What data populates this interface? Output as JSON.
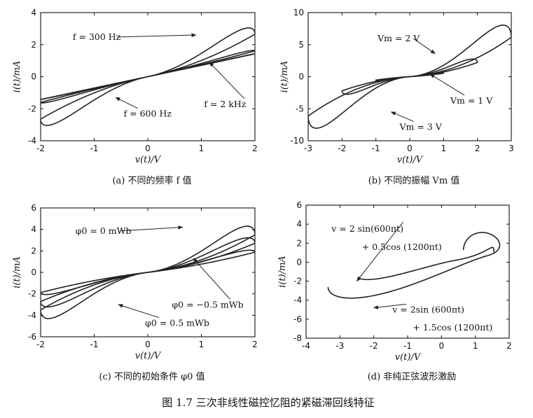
{
  "figure_caption": "图 1.7    三次非线性磁控忆阻的紧磁滞回线特征",
  "chart_data": [
    {
      "type": "line",
      "id": "a",
      "caption": "(a) 不同的频率 f 值",
      "xlabel": "v(t)/V",
      "ylabel": "i(t)/mA",
      "xlim": [
        -2,
        2
      ],
      "ylim": [
        -4,
        4
      ],
      "xticks": [
        -2,
        -1,
        0,
        1,
        2
      ],
      "yticks": [
        -4,
        -2,
        0,
        2,
        4
      ],
      "series": [
        {
          "amp": 2,
          "peak": 3.8,
          "min": 0.7,
          "w2": 0,
          "c2": 0
        },
        {
          "amp": 2,
          "peak": 1.8,
          "min": 0.7,
          "w2": 0,
          "c2": 0
        },
        {
          "amp": 2,
          "peak": 1.45,
          "min": 0.7,
          "w2": 0,
          "c2": 0
        }
      ],
      "annotations": [
        {
          "text": "f = 300 Hz",
          "tx": -1.4,
          "ty": 2.3,
          "ax": 0.9,
          "ay": 2.6
        },
        {
          "text": "f = 600 Hz",
          "tx": -0.45,
          "ty": -2.5,
          "ax": -0.6,
          "ay": -1.3
        },
        {
          "text": "f = 2 kHz",
          "tx": 1.05,
          "ty": -1.9,
          "ax": 1.15,
          "ay": 0.9
        }
      ]
    },
    {
      "type": "line",
      "id": "b",
      "caption": "(b) 不同的振幅 Vm 值",
      "xlabel": "v(t)/V",
      "ylabel": "i(t)/mA",
      "xlim": [
        -3,
        3
      ],
      "ylim": [
        -10,
        10
      ],
      "xticks": [
        -3,
        -2,
        -1,
        0,
        1,
        2,
        3
      ],
      "yticks": [
        -10,
        -5,
        0,
        5,
        10
      ],
      "series": [
        {
          "amp": 3,
          "peak": 10.8,
          "min": 0.35,
          "w2": 0,
          "c2": 0
        },
        {
          "amp": 2,
          "peak": 3.6,
          "min": 0.35,
          "w2": 0,
          "c2": 0
        },
        {
          "amp": 1,
          "peak": 0.75,
          "min": 0.3,
          "w2": 0,
          "c2": 0
        }
      ],
      "annotations": [
        {
          "text": "Vm = 2 V",
          "tx": -0.95,
          "ty": 5.5,
          "ax": 0.75,
          "ay": 3.6
        },
        {
          "text": "Vm = 1 V",
          "tx": 1.2,
          "ty": -4.2,
          "ax": 0.6,
          "ay": 0.4
        },
        {
          "text": "Vm = 3 V",
          "tx": -0.3,
          "ty": -8.3,
          "ax": -0.55,
          "ay": -5.5
        }
      ]
    },
    {
      "type": "line",
      "id": "c",
      "caption": "(c) 不同的初始条件 φ0 值",
      "xlabel": "v(t)/V",
      "ylabel": "i(t)/mA",
      "xlim": [
        -2,
        2
      ],
      "ylim": [
        -6,
        6
      ],
      "xticks": [
        -2,
        -1,
        0,
        1,
        2
      ],
      "yticks": [
        -6,
        -4,
        -2,
        0,
        2,
        4,
        6
      ],
      "series": [
        {
          "amp": 2,
          "peak": 5.6,
          "min": 0.6,
          "w2": 0,
          "c2": 0
        },
        {
          "amp": 2,
          "peak": 4.1,
          "min": 0.6,
          "w2": 0,
          "c2": 0
        },
        {
          "amp": 2,
          "peak": 2.5,
          "min": 0.6,
          "w2": 0,
          "c2": 0
        }
      ],
      "annotations": [
        {
          "text": "φ0 = 0 mWb",
          "tx": -1.35,
          "ty": 3.6,
          "ax": 0.65,
          "ay": 4.2
        },
        {
          "text": "φ0 = −0.5 mWb",
          "tx": 0.45,
          "ty": -3.3,
          "ax": 0.85,
          "ay": 1.3
        },
        {
          "text": "φ0 = 0.5 mWb",
          "tx": -0.05,
          "ty": -5.0,
          "ax": -0.55,
          "ay": -3.0
        }
      ]
    },
    {
      "type": "line",
      "id": "d",
      "caption": "(d) 非纯正弦波形激励",
      "xlabel": "v(t)/V",
      "ylabel": "i(t)/mA",
      "xlim": [
        -4,
        2
      ],
      "ylim": [
        -8,
        6
      ],
      "xticks": [
        -4,
        -3,
        -2,
        -1,
        0,
        1,
        2
      ],
      "yticks": [
        -8,
        -6,
        -4,
        -2,
        0,
        2,
        4,
        6
      ],
      "series": [
        {
          "amp": 2,
          "peak": 4.8,
          "min": 0.5,
          "w2": 0.5,
          "c2": 1.5
        },
        {
          "amp": 2,
          "peak": 2.2,
          "min": 0.5,
          "w2": 0.5,
          "c2": 0.5
        }
      ],
      "annotations": [
        {
          "text": "v = 2 sin(600πt)",
          "tx": -3.25,
          "ty": 3.2,
          "ax": -2.5,
          "ay": -2.0
        },
        {
          "text": "+ 0.5cos (1200πt)",
          "tx": -2.35,
          "ty": 1.3,
          "ax": null,
          "ay": null
        },
        {
          "text": "v = 2sin (600πt)",
          "tx": -1.45,
          "ty": -5.3,
          "ax": -2.0,
          "ay": -4.8
        },
        {
          "text": "+ 1.5cos (1200πt)",
          "tx": -0.85,
          "ty": -7.2,
          "ax": null,
          "ay": null
        }
      ]
    }
  ]
}
